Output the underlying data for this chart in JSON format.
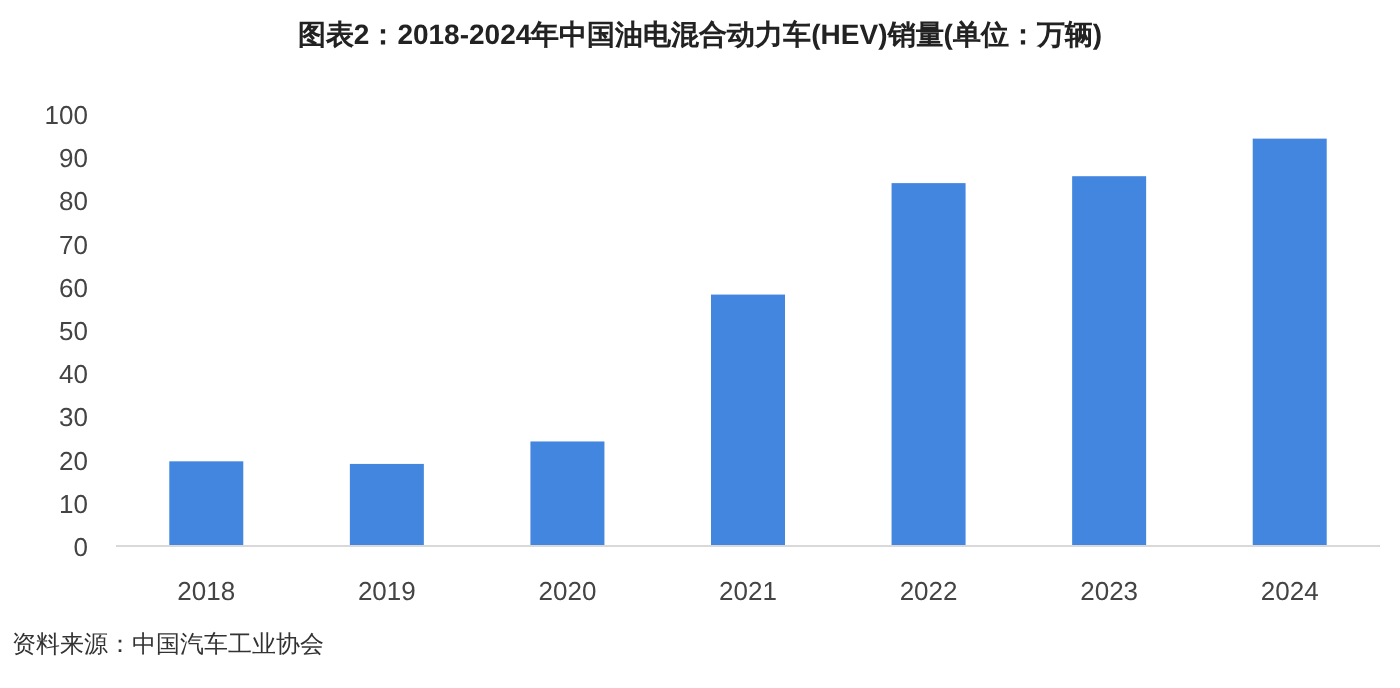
{
  "chart_data": {
    "type": "bar",
    "title": "图表2：2018-2024年中国油电混合动力车(HEV)销量(单位：万辆)",
    "categories": [
      "2018",
      "2019",
      "2020",
      "2021",
      "2022",
      "2023",
      "2024"
    ],
    "values": [
      19.6,
      19.0,
      24.2,
      58.2,
      84.0,
      85.6,
      94.3
    ],
    "color": "#4286e0",
    "ylim": [
      0,
      100
    ],
    "yticks": [
      0,
      10,
      20,
      30,
      40,
      50,
      60,
      70,
      80,
      90,
      100
    ],
    "grid": false,
    "annotations": [
      "资料来源：中国汽车工业协会"
    ]
  }
}
